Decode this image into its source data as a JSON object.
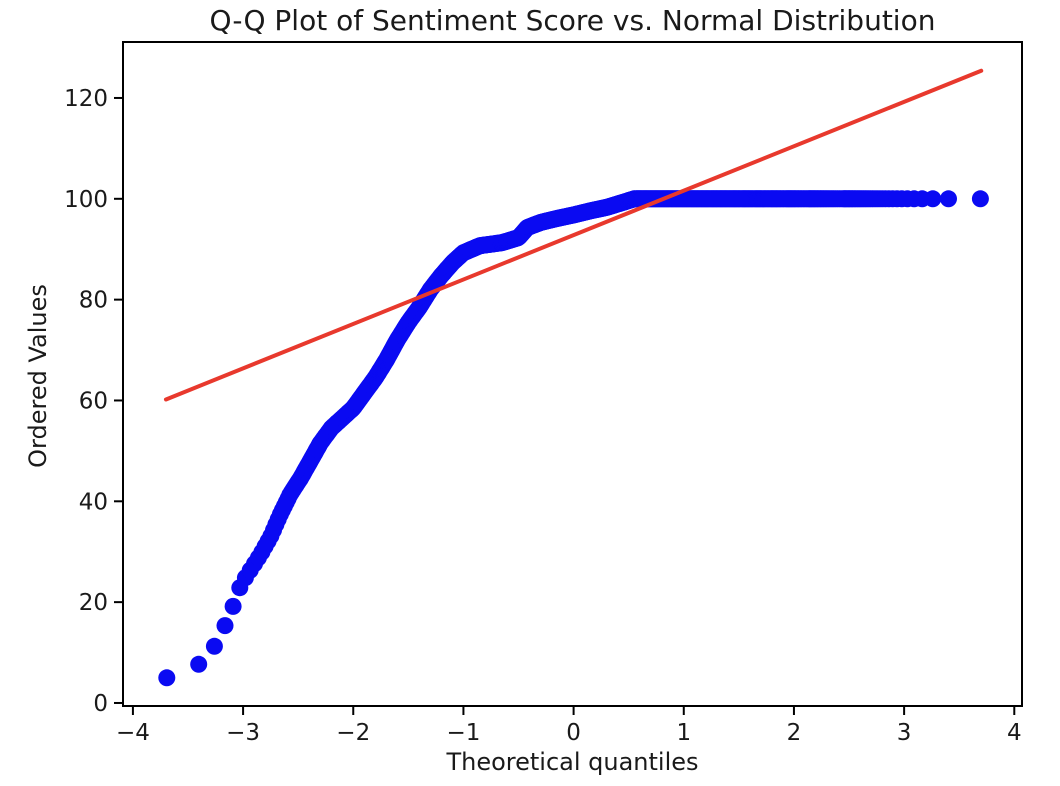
{
  "title": "Q-Q Plot of Sentiment Score vs. Normal Distribution",
  "chart_data": {
    "type": "scatter",
    "title": "Q-Q Plot of Sentiment Score vs. Normal Distribution",
    "xlabel": "Theoretical quantiles",
    "ylabel": "Ordered Values",
    "xlim": [
      -4.09,
      4.07
    ],
    "ylim": [
      -0.6,
      131.1
    ],
    "grid": false,
    "legend": null,
    "x_ticks": [
      {
        "value": -4,
        "label": "−4"
      },
      {
        "value": -3,
        "label": "−3"
      },
      {
        "value": -2,
        "label": "−2"
      },
      {
        "value": -1,
        "label": "−1"
      },
      {
        "value": 0,
        "label": "0"
      },
      {
        "value": 1,
        "label": "1"
      },
      {
        "value": 2,
        "label": "2"
      },
      {
        "value": 3,
        "label": "3"
      },
      {
        "value": 4,
        "label": "4"
      }
    ],
    "y_ticks": [
      {
        "value": 0,
        "label": "0"
      },
      {
        "value": 20,
        "label": "20"
      },
      {
        "value": 40,
        "label": "40"
      },
      {
        "value": 60,
        "label": "60"
      },
      {
        "value": 80,
        "label": "80"
      },
      {
        "value": 100,
        "label": "100"
      },
      {
        "value": 120,
        "label": "120"
      }
    ],
    "series": [
      {
        "name": "sample-quantiles",
        "kind": "scatter",
        "color": "#0a0af2",
        "marker_radius": 8.5,
        "n_points": 4500,
        "value_range": [
          5,
          100
        ],
        "saturation_value": 100,
        "curve_anchors": [
          [
            -3.69,
            5.0
          ],
          [
            -3.45,
            7.0
          ],
          [
            -3.33,
            8.7
          ],
          [
            -3.24,
            12.0
          ],
          [
            -3.12,
            17.3
          ],
          [
            -3.02,
            23.5
          ],
          [
            -2.93,
            26.5
          ],
          [
            -2.84,
            29.5
          ],
          [
            -2.75,
            33.0
          ],
          [
            -2.66,
            37.5
          ],
          [
            -2.57,
            41.5
          ],
          [
            -2.48,
            44.5
          ],
          [
            -2.39,
            48.0
          ],
          [
            -2.3,
            51.5
          ],
          [
            -2.2,
            54.5
          ],
          [
            -2.1,
            56.5
          ],
          [
            -2.0,
            58.5
          ],
          [
            -1.9,
            61.5
          ],
          [
            -1.8,
            64.5
          ],
          [
            -1.7,
            68.0
          ],
          [
            -1.6,
            72.0
          ],
          [
            -1.5,
            75.5
          ],
          [
            -1.4,
            78.5
          ],
          [
            -1.3,
            82.0
          ],
          [
            -1.2,
            84.8
          ],
          [
            -1.1,
            87.3
          ],
          [
            -1.0,
            89.3
          ],
          [
            -0.85,
            90.7
          ],
          [
            -0.65,
            91.3
          ],
          [
            -0.5,
            92.3
          ],
          [
            -0.42,
            94.3
          ],
          [
            -0.3,
            95.3
          ],
          [
            -0.15,
            96.1
          ],
          [
            0.0,
            96.8
          ],
          [
            0.15,
            97.6
          ],
          [
            0.3,
            98.3
          ],
          [
            0.45,
            99.3
          ],
          [
            0.55,
            100.0
          ],
          [
            3.69,
            100.0
          ]
        ]
      },
      {
        "name": "fit-line",
        "kind": "line",
        "color": "#e8392d",
        "width": 4,
        "points": [
          [
            -3.7,
            60.2
          ],
          [
            3.7,
            125.4
          ]
        ]
      }
    ]
  },
  "colors": {
    "background": "#ffffff",
    "spine": "#000000",
    "text": "#1a1a1a",
    "marker_blue": "#0a0af2",
    "line_red": "#e8392d"
  }
}
